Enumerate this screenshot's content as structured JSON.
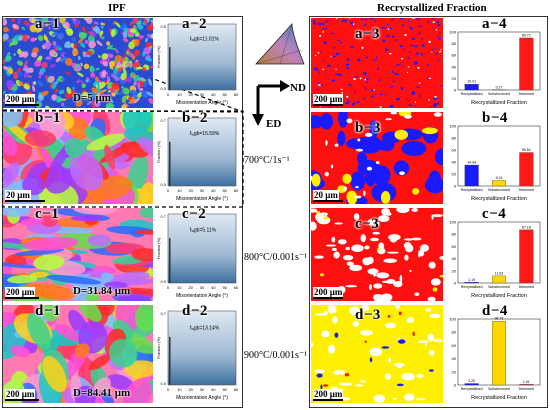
{
  "headers": {
    "ipf": "IPF",
    "rf": "Recrystallized Fraction"
  },
  "axes_indicator": {
    "nd": "ND",
    "ed": "ED"
  },
  "rows": [
    {
      "ipf_label": "a−1",
      "hist_label": "a−2",
      "rf_label": "a−3",
      "bar_label": "a−4",
      "scale": "200 μm",
      "grain": "D=5 μm",
      "condition": "",
      "lagb": "fₗₐgb=11.01%",
      "ymax": "0.5",
      "rf_scale": "200 μm"
    },
    {
      "ipf_label": "b−1",
      "hist_label": "b−2",
      "rf_label": "b−3",
      "bar_label": "b−4",
      "scale": "20 μm",
      "grain": "",
      "condition": "700°C/1s⁻¹",
      "lagb": "fₗₐgb=15.59%",
      "ymax": "0.7",
      "rf_scale": "20 μm"
    },
    {
      "ipf_label": "c−1",
      "hist_label": "c−2",
      "rf_label": "c−3",
      "bar_label": "c−4",
      "scale": "200 μm",
      "grain": "D=31.84 μm",
      "condition": "800°C/0.001s⁻¹",
      "lagb": "fₗₐgb=5.11%",
      "ymax": "0.7",
      "rf_scale": "200 μm"
    },
    {
      "ipf_label": "d−1",
      "hist_label": "d−2",
      "rf_label": "d−3",
      "bar_label": "d−4",
      "scale": "200 μm",
      "grain": "D=84.41 μm",
      "condition": "900°C/0.001s⁻¹",
      "lagb": "fₗₐgb=13.14%",
      "ymax": "0.7",
      "rf_scale": "200 μm"
    }
  ],
  "hist_axis": {
    "xlabel": "Misorientation Angle (°)",
    "ylabel": "Fraction (%)",
    "xticks": [
      "0",
      "10",
      "20",
      "30",
      "40",
      "50",
      "60"
    ]
  },
  "bar_axis": {
    "xlabel": "Recrystallized Fraction",
    "categories": [
      "Recrystallized",
      "Substructured",
      "Deformed"
    ],
    "yticks": [
      "0",
      "20",
      "40",
      "60",
      "80",
      "100"
    ]
  },
  "chart_data": [
    {
      "type": "bar",
      "title": "a−4",
      "categories": [
        "Recrystallized",
        "Substructured",
        "Deformed"
      ],
      "values": [
        10.01,
        0.27,
        89.72
      ],
      "colors": [
        "#1a1aff",
        "#ffd700",
        "#ff1a1a"
      ],
      "ylim": [
        0,
        100
      ]
    },
    {
      "type": "bar",
      "title": "b−4",
      "categories": [
        "Recrystallized",
        "Substructured",
        "Deformed"
      ],
      "values": [
        34.94,
        9.24,
        55.82
      ],
      "colors": [
        "#1a1aff",
        "#ffd700",
        "#ff1a1a"
      ],
      "ylim": [
        0,
        100
      ]
    },
    {
      "type": "bar",
      "title": "c−4",
      "categories": [
        "Recrystallized",
        "Substructured",
        "Deformed"
      ],
      "values": [
        1.19,
        11.63,
        87.18
      ],
      "colors": [
        "#1a1aff",
        "#ffd700",
        "#ff1a1a"
      ],
      "ylim": [
        0,
        100
      ]
    },
    {
      "type": "bar",
      "title": "d−4",
      "categories": [
        "Recrystallized",
        "Substructured",
        "Deformed"
      ],
      "values": [
        2.26,
        96.73,
        1.01
      ],
      "colors": [
        "#1a1aff",
        "#ffd700",
        "#ff1a1a"
      ],
      "ylim": [
        0,
        100
      ]
    }
  ]
}
